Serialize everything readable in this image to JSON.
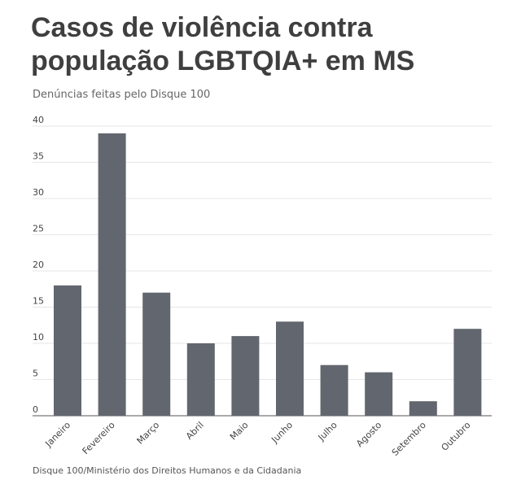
{
  "header": {
    "title": "Casos de violência contra população LGBTQIA+ em MS",
    "subtitle": "Denúncias feitas pelo Disque 100"
  },
  "footer": {
    "source": "Disque 100/Ministério dos Direitos Humanos e da Cidadania"
  },
  "chart_data": {
    "type": "bar",
    "title": "Casos de violência contra população LGBTQIA+ em MS",
    "subtitle": "Denúncias feitas pelo Disque 100",
    "categories": [
      "Janeiro",
      "Fevereiro",
      "Março",
      "Abril",
      "Maio",
      "Junho",
      "Julho",
      "Agosto",
      "Setembro",
      "Outubro"
    ],
    "values": [
      18,
      39,
      17,
      10,
      11,
      13,
      7,
      6,
      2,
      12
    ],
    "ylim": [
      0,
      40
    ],
    "yticks": [
      0,
      5,
      10,
      15,
      20,
      25,
      30,
      35,
      40
    ],
    "grid": true,
    "bar_color": "#62666e",
    "xlabel": "",
    "ylabel": ""
  }
}
